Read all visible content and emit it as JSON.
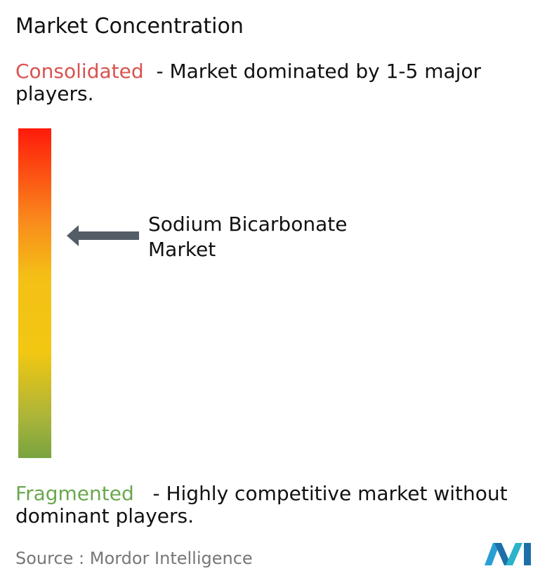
{
  "title": "Market Concentration",
  "consolidated": {
    "label": "Consolidated",
    "description": "- Market dominated by 1-5 major players."
  },
  "fragmented": {
    "label": "Fragmented",
    "description": "- Highly competitive market without dominant players."
  },
  "market": {
    "label": "Sodium Bicarbonate Market"
  },
  "source": {
    "label": "Source :",
    "name": "Mordor Intelligence"
  }
}
